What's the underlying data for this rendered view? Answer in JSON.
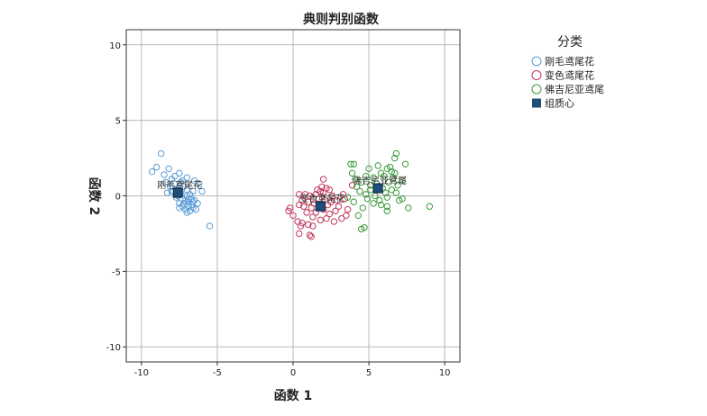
{
  "chart_data": {
    "type": "scatter",
    "title": "典则判别函数",
    "xlabel": "函数 1",
    "ylabel": "函数 2",
    "xlim": [
      -11,
      11
    ],
    "ylim": [
      -11,
      11
    ],
    "xticks": [
      -10,
      -5,
      0,
      5,
      10
    ],
    "yticks": [
      -10,
      -5,
      0,
      5,
      10
    ],
    "grid": true,
    "legend": {
      "title": "分类",
      "placement": "right",
      "entries": [
        "刚毛鸢尾花",
        "变色鸢尾花",
        "佛吉尼亚鸢尾",
        "组质心"
      ]
    },
    "series": [
      {
        "name": "刚毛鸢尾花",
        "color": "#5b9bd5",
        "marker": "open-circle",
        "points": [
          [
            -8.7,
            2.8
          ],
          [
            -9.3,
            1.6
          ],
          [
            -9.0,
            1.9
          ],
          [
            -8.5,
            1.4
          ],
          [
            -8.2,
            1.8
          ],
          [
            -8.0,
            1.1
          ],
          [
            -7.8,
            1.3
          ],
          [
            -7.5,
            1.5
          ],
          [
            -7.3,
            1.0
          ],
          [
            -7.0,
            1.2
          ],
          [
            -6.5,
            1.0
          ],
          [
            -6.2,
            0.8
          ],
          [
            -8.1,
            0.6
          ],
          [
            -7.9,
            0.3
          ],
          [
            -7.6,
            0.5
          ],
          [
            -7.4,
            0.2
          ],
          [
            -7.2,
            0.6
          ],
          [
            -7.0,
            0.4
          ],
          [
            -6.8,
            0.1
          ],
          [
            -6.6,
            0.3
          ],
          [
            -6.0,
            0.3
          ],
          [
            -8.3,
            0.2
          ],
          [
            -7.7,
            -0.1
          ],
          [
            -7.3,
            -0.2
          ],
          [
            -7.1,
            -0.3
          ],
          [
            -6.9,
            -0.4
          ],
          [
            -6.7,
            -0.6
          ],
          [
            -6.5,
            -0.3
          ],
          [
            -6.6,
            -0.8
          ],
          [
            -6.9,
            -0.7
          ],
          [
            -7.1,
            -0.9
          ],
          [
            -7.3,
            -0.7
          ],
          [
            -7.5,
            -0.5
          ],
          [
            -6.8,
            -1.0
          ],
          [
            -6.4,
            -0.9
          ],
          [
            -7.6,
            0.0
          ],
          [
            -7.8,
            0.8
          ],
          [
            -8.0,
            0.3
          ],
          [
            -6.3,
            -0.5
          ],
          [
            -5.5,
            -2.0
          ],
          [
            -7.0,
            -1.1
          ],
          [
            -6.7,
            -0.2
          ],
          [
            -7.4,
            0.9
          ],
          [
            -8.4,
            0.9
          ],
          [
            -7.2,
            -0.5
          ],
          [
            -6.9,
            -0.2
          ],
          [
            -7.0,
            0.0
          ],
          [
            -6.6,
            -0.4
          ],
          [
            -7.5,
            -0.8
          ],
          [
            -7.7,
            0.4
          ]
        ]
      },
      {
        "name": "变色鸢尾花",
        "color": "#c0365b",
        "marker": "open-circle",
        "points": [
          [
            1.1,
            -2.6
          ],
          [
            1.2,
            -2.7
          ],
          [
            0.4,
            -2.5
          ],
          [
            0.5,
            -2.0
          ],
          [
            0.3,
            -1.7
          ],
          [
            0.6,
            -1.8
          ],
          [
            1.0,
            -1.9
          ],
          [
            1.3,
            -2.0
          ],
          [
            -0.3,
            -1.0
          ],
          [
            -0.2,
            -0.8
          ],
          [
            0.0,
            -1.3
          ],
          [
            0.4,
            -0.6
          ],
          [
            0.6,
            -0.3
          ],
          [
            0.8,
            0.1
          ],
          [
            0.4,
            0.1
          ],
          [
            1.0,
            -0.4
          ],
          [
            1.2,
            -0.8
          ],
          [
            1.5,
            -1.1
          ],
          [
            1.4,
            -0.5
          ],
          [
            1.7,
            -0.2
          ],
          [
            1.8,
            0.3
          ],
          [
            2.0,
            0.2
          ],
          [
            2.1,
            -0.3
          ],
          [
            2.3,
            -0.6
          ],
          [
            2.0,
            -0.9
          ],
          [
            2.4,
            -1.2
          ],
          [
            2.5,
            -0.4
          ],
          [
            2.6,
            0.0
          ],
          [
            2.2,
            0.5
          ],
          [
            1.9,
            0.6
          ],
          [
            1.6,
            0.4
          ],
          [
            2.0,
            1.1
          ],
          [
            2.8,
            -1.0
          ],
          [
            3.2,
            -1.5
          ],
          [
            3.6,
            -0.9
          ],
          [
            3.4,
            -0.2
          ],
          [
            3.9,
            0.7
          ],
          [
            3.3,
            0.1
          ],
          [
            2.9,
            -0.3
          ],
          [
            1.3,
            -1.4
          ],
          [
            1.1,
            0.0
          ],
          [
            0.9,
            -1.1
          ],
          [
            2.7,
            -1.7
          ],
          [
            3.0,
            -0.7
          ],
          [
            1.5,
            0.1
          ],
          [
            2.2,
            -1.5
          ],
          [
            1.8,
            -1.6
          ],
          [
            3.5,
            -1.3
          ],
          [
            0.7,
            -0.7
          ],
          [
            2.4,
            0.4
          ]
        ]
      },
      {
        "name": "佛吉尼亚鸢尾",
        "color": "#3a9a3a",
        "marker": "open-circle",
        "points": [
          [
            3.8,
            2.1
          ],
          [
            4.0,
            2.1
          ],
          [
            5.6,
            2.0
          ],
          [
            6.2,
            1.8
          ],
          [
            6.7,
            2.5
          ],
          [
            6.8,
            2.8
          ],
          [
            7.4,
            2.1
          ],
          [
            6.5,
            1.6
          ],
          [
            6.0,
            1.3
          ],
          [
            5.8,
            1.5
          ],
          [
            5.3,
            1.2
          ],
          [
            4.8,
            1.3
          ],
          [
            4.5,
            0.9
          ],
          [
            4.2,
            0.6
          ],
          [
            4.4,
            0.3
          ],
          [
            4.8,
            0.1
          ],
          [
            5.1,
            0.4
          ],
          [
            5.5,
            0.8
          ],
          [
            5.9,
            0.5
          ],
          [
            6.3,
            0.9
          ],
          [
            6.6,
            1.2
          ],
          [
            6.9,
            0.7
          ],
          [
            7.2,
            1.0
          ],
          [
            6.8,
            0.2
          ],
          [
            6.2,
            -0.1
          ],
          [
            5.7,
            -0.3
          ],
          [
            5.3,
            -0.5
          ],
          [
            4.9,
            -0.2
          ],
          [
            4.6,
            -0.8
          ],
          [
            4.3,
            -1.3
          ],
          [
            4.7,
            -2.1
          ],
          [
            4.5,
            -2.2
          ],
          [
            6.2,
            -0.7
          ],
          [
            6.2,
            -1.0
          ],
          [
            7.2,
            -0.2
          ],
          [
            7.6,
            -0.8
          ],
          [
            9.0,
            -0.7
          ],
          [
            5.1,
            0.7
          ],
          [
            4.1,
            1.1
          ],
          [
            3.9,
            1.5
          ],
          [
            5.0,
            1.8
          ],
          [
            6.4,
            1.9
          ],
          [
            6.7,
            1.5
          ],
          [
            5.4,
            0.0
          ],
          [
            4.0,
            -0.4
          ],
          [
            3.6,
            -0.1
          ],
          [
            5.8,
            -0.6
          ],
          [
            6.5,
            0.4
          ],
          [
            7.0,
            -0.3
          ],
          [
            6.1,
            0.2
          ]
        ]
      }
    ],
    "centroids": [
      {
        "label": "刚毛鸢尾花",
        "x": -7.6,
        "y": 0.2
      },
      {
        "label": "变色鸢尾花",
        "x": 1.8,
        "y": -0.7
      },
      {
        "label": "佛吉尼亚鸢尾",
        "x": 5.6,
        "y": 0.5
      }
    ],
    "centroid_color": "#1f4e79"
  }
}
